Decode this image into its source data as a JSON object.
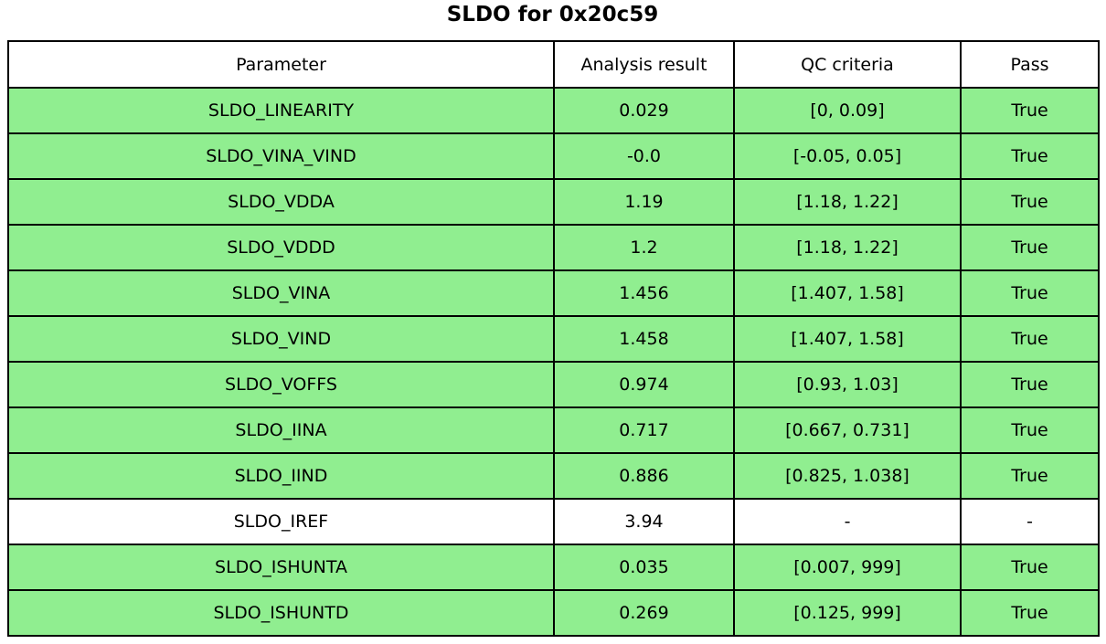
{
  "title": "SLDO for 0x20c59",
  "colors": {
    "pass_row_green": "#90EE90",
    "neutral_row_white": "#FFFFFF",
    "border_black": "#000000"
  },
  "table": {
    "headers": [
      "Parameter",
      "Analysis result",
      "QC criteria",
      "Pass"
    ],
    "rows": [
      {
        "parameter": "SLDO_LINEARITY",
        "result": "0.029",
        "criteria": "[0, 0.09]",
        "pass": "True",
        "highlight": true
      },
      {
        "parameter": "SLDO_VINA_VIND",
        "result": "-0.0",
        "criteria": "[-0.05, 0.05]",
        "pass": "True",
        "highlight": true
      },
      {
        "parameter": "SLDO_VDDA",
        "result": "1.19",
        "criteria": "[1.18, 1.22]",
        "pass": "True",
        "highlight": true
      },
      {
        "parameter": "SLDO_VDDD",
        "result": "1.2",
        "criteria": "[1.18, 1.22]",
        "pass": "True",
        "highlight": true
      },
      {
        "parameter": "SLDO_VINA",
        "result": "1.456",
        "criteria": "[1.407, 1.58]",
        "pass": "True",
        "highlight": true
      },
      {
        "parameter": "SLDO_VIND",
        "result": "1.458",
        "criteria": "[1.407, 1.58]",
        "pass": "True",
        "highlight": true
      },
      {
        "parameter": "SLDO_VOFFS",
        "result": "0.974",
        "criteria": "[0.93, 1.03]",
        "pass": "True",
        "highlight": true
      },
      {
        "parameter": "SLDO_IINA",
        "result": "0.717",
        "criteria": "[0.667, 0.731]",
        "pass": "True",
        "highlight": true
      },
      {
        "parameter": "SLDO_IIND",
        "result": "0.886",
        "criteria": "[0.825, 1.038]",
        "pass": "True",
        "highlight": true
      },
      {
        "parameter": "SLDO_IREF",
        "result": "3.94",
        "criteria": "-",
        "pass": "-",
        "highlight": false
      },
      {
        "parameter": "SLDO_ISHUNTA",
        "result": "0.035",
        "criteria": "[0.007, 999]",
        "pass": "True",
        "highlight": true
      },
      {
        "parameter": "SLDO_ISHUNTD",
        "result": "0.269",
        "criteria": "[0.125, 999]",
        "pass": "True",
        "highlight": true
      }
    ]
  },
  "chart_data": {
    "type": "table",
    "title": "SLDO for 0x20c59",
    "columns": [
      "Parameter",
      "Analysis result",
      "QC criteria",
      "Pass"
    ],
    "rows": [
      [
        "SLDO_LINEARITY",
        "0.029",
        "[0, 0.09]",
        "True"
      ],
      [
        "SLDO_VINA_VIND",
        "-0.0",
        "[-0.05, 0.05]",
        "True"
      ],
      [
        "SLDO_VDDA",
        "1.19",
        "[1.18, 1.22]",
        "True"
      ],
      [
        "SLDO_VDDD",
        "1.2",
        "[1.18, 1.22]",
        "True"
      ],
      [
        "SLDO_VINA",
        "1.456",
        "[1.407, 1.58]",
        "True"
      ],
      [
        "SLDO_VIND",
        "1.458",
        "[1.407, 1.58]",
        "True"
      ],
      [
        "SLDO_VOFFS",
        "0.974",
        "[0.93, 1.03]",
        "True"
      ],
      [
        "SLDO_IINA",
        "0.717",
        "[0.667, 0.731]",
        "True"
      ],
      [
        "SLDO_IIND",
        "0.886",
        "[0.825, 1.038]",
        "True"
      ],
      [
        "SLDO_IREF",
        "3.94",
        "-",
        "-"
      ],
      [
        "SLDO_ISHUNTA",
        "0.035",
        "[0.007, 999]",
        "True"
      ],
      [
        "SLDO_ISHUNTD",
        "0.269",
        "[0.125, 999]",
        "True"
      ]
    ],
    "row_colors": [
      "green",
      "green",
      "green",
      "green",
      "green",
      "green",
      "green",
      "green",
      "green",
      "white",
      "green",
      "green"
    ],
    "layout": {
      "header_background": "#FFFFFF",
      "pass_row_background": "#90EE90",
      "grid": true
    }
  }
}
